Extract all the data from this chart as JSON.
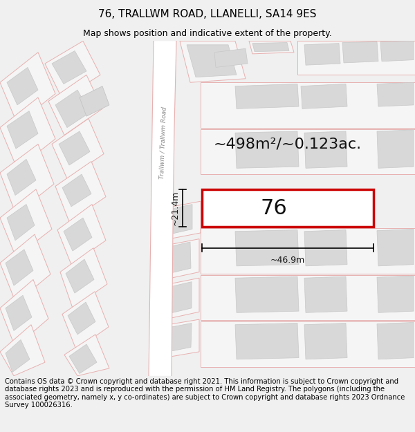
{
  "title": "76, TRALLWM ROAD, LLANELLI, SA14 9ES",
  "subtitle": "Map shows position and indicative extent of the property.",
  "footer": "Contains OS data © Crown copyright and database right 2021. This information is subject to Crown copyright and database rights 2023 and is reproduced with the permission of HM Land Registry. The polygons (including the associated geometry, namely x, y co-ordinates) are subject to Crown copyright and database rights 2023 Ordnance Survey 100026316.",
  "area_label": "~498m²/~0.123ac.",
  "number_label": "76",
  "width_label": "~46.9m",
  "height_label": "~21.4m",
  "bg_color": "#f0f0f0",
  "map_bg": "#ffffff",
  "plot_edge": "#cc0000",
  "bld_fill": "#d8d8d8",
  "bld_edge": "#e8b0b0",
  "plot_line_fill": "#e8b0b0",
  "road_line": "#e8b0b0",
  "title_fontsize": 11,
  "subtitle_fontsize": 9,
  "footer_fontsize": 7.2,
  "area_fontsize": 16,
  "num_fontsize": 22,
  "meas_fontsize": 9
}
